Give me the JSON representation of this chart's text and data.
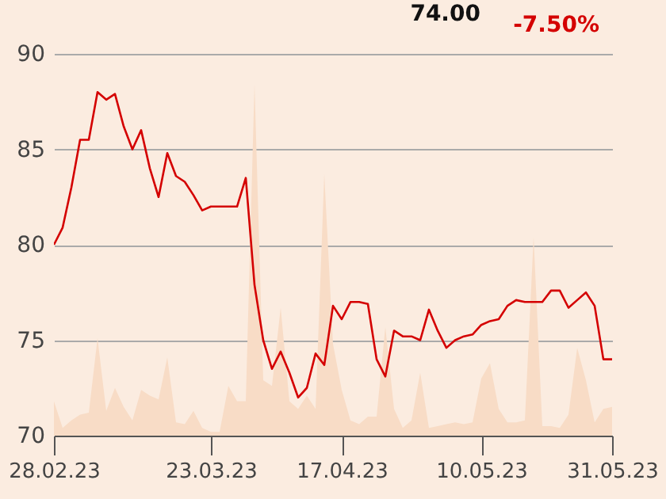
{
  "chart_data": {
    "type": "line",
    "annotations": [
      "74.00",
      "-7.50%"
    ],
    "categories": [
      "28.02.23",
      null,
      null,
      null,
      null,
      null,
      null,
      null,
      null,
      null,
      null,
      null,
      null,
      null,
      null,
      null,
      null,
      null,
      "23.03.23",
      null,
      null,
      null,
      null,
      null,
      null,
      null,
      null,
      null,
      null,
      null,
      null,
      null,
      null,
      "17.04.23",
      null,
      null,
      null,
      null,
      null,
      null,
      null,
      null,
      null,
      null,
      null,
      null,
      null,
      null,
      null,
      "10.05.23",
      null,
      null,
      null,
      null,
      null,
      null,
      null,
      null,
      null,
      null,
      null,
      null,
      null,
      null,
      "31.05.23"
    ],
    "series": [
      {
        "type": "area",
        "color": "#f8dcc6",
        "values": [
          71.8,
          70.4,
          70.8,
          71.1,
          71.2,
          75.1,
          71.3,
          72.5,
          71.5,
          70.8,
          72.4,
          72.1,
          71.9,
          74.1,
          70.7,
          70.6,
          71.3,
          70.4,
          70.2,
          70.2,
          72.6,
          71.8,
          71.8,
          88.4,
          72.9,
          72.6,
          76.7,
          71.8,
          71.4,
          72.1,
          71.4,
          83.7,
          74.8,
          72.4,
          70.8,
          70.6,
          71.0,
          71.0,
          75.7,
          71.4,
          70.4,
          70.8,
          73.3,
          70.4,
          70.5,
          70.6,
          70.7,
          70.6,
          70.7,
          73.0,
          73.8,
          71.4,
          70.7,
          70.7,
          70.8,
          80.4,
          70.5,
          70.5,
          70.4,
          71.1,
          74.6,
          72.9,
          70.7,
          71.4,
          71.5
        ]
      },
      {
        "color": "#d40000",
        "values": [
          80.0,
          80.9,
          83.0,
          85.5,
          85.5,
          88.0,
          87.6,
          87.9,
          86.2,
          85.0,
          86.0,
          84.0,
          82.5,
          84.8,
          83.6,
          83.3,
          82.6,
          81.8,
          82.0,
          82.0,
          82.0,
          82.0,
          83.5,
          77.9,
          75.0,
          73.5,
          74.4,
          73.3,
          72.0,
          72.5,
          74.3,
          73.7,
          76.8,
          76.1,
          77.0,
          77.0,
          76.9,
          74.0,
          73.1,
          75.5,
          75.2,
          75.2,
          75.0,
          76.6,
          75.5,
          74.6,
          75.0,
          75.2,
          75.3,
          75.8,
          76.0,
          76.1,
          76.8,
          77.1,
          77.0,
          77.0,
          77.0,
          77.6,
          77.6,
          76.7,
          77.1,
          77.5,
          76.8,
          74.0,
          74.0
        ]
      }
    ],
    "ylim": [
      70,
      90
    ],
    "yticks": [
      70,
      75,
      80,
      85,
      90
    ],
    "grid": "y"
  }
}
